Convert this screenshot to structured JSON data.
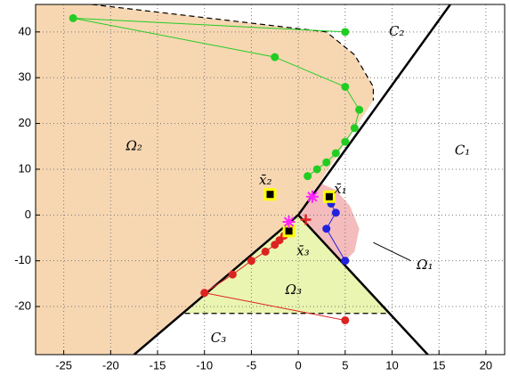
{
  "chart_data": {
    "type": "line",
    "xlim": [
      -28,
      22
    ],
    "ylim": [
      -30.5,
      46
    ],
    "xticks": [
      -25,
      -20,
      -15,
      -10,
      -5,
      0,
      5,
      10,
      15,
      20
    ],
    "yticks": [
      -20,
      -10,
      0,
      10,
      20,
      30,
      40
    ],
    "grid": true,
    "regions": [
      {
        "color": "#f7d7b2",
        "points": [
          [
            -28,
            -30.5
          ],
          [
            -17.5,
            -30.5
          ],
          [
            0,
            0
          ],
          [
            8,
            25
          ],
          [
            8,
            28
          ],
          [
            6,
            35
          ],
          [
            3,
            40
          ],
          [
            -22,
            46
          ],
          [
            -28,
            46
          ]
        ]
      },
      {
        "color": "#f4bcbc",
        "points": [
          [
            0,
            0
          ],
          [
            2.5,
            6.8
          ],
          [
            4,
            5.5
          ],
          [
            5.5,
            2
          ],
          [
            6.5,
            -3
          ],
          [
            6,
            -8
          ],
          [
            5,
            -10
          ],
          [
            4.5,
            -10
          ]
        ]
      },
      {
        "color": "#e9f5b0",
        "points": [
          [
            0,
            0
          ],
          [
            -12.1,
            -21.5
          ],
          [
            9.7,
            -21.5
          ]
        ]
      }
    ],
    "lines": [
      {
        "style": "solid",
        "color": "#000000",
        "width": 2.5,
        "points": [
          [
            -17.5,
            -30.5
          ],
          [
            0,
            0
          ],
          [
            16.2,
            46
          ]
        ]
      },
      {
        "style": "solid",
        "color": "#000000",
        "width": 2.5,
        "points": [
          [
            0,
            0
          ],
          [
            13.8,
            -30.5
          ]
        ]
      },
      {
        "style": "dashed",
        "color": "#000000",
        "width": 1.2,
        "points": [
          [
            -12.1,
            -21.5
          ],
          [
            9.7,
            -21.5
          ]
        ]
      },
      {
        "style": "dashed",
        "color": "#000000",
        "width": 1.2,
        "points": [
          [
            -22,
            46
          ],
          [
            3,
            40
          ],
          [
            6,
            35
          ],
          [
            8,
            28
          ],
          [
            8,
            25
          ]
        ]
      },
      {
        "style": "solid",
        "color": "#000000",
        "width": 1,
        "points": [
          [
            8,
            -6
          ],
          [
            12,
            -10
          ]
        ]
      }
    ],
    "series": [
      {
        "color": "#22cc22",
        "x": [
          5,
          -24,
          -2.5,
          5,
          6.5,
          6,
          5,
          4,
          3,
          2,
          1
        ],
        "values": [
          40,
          43,
          34.5,
          28,
          23,
          19,
          16,
          13.5,
          11.5,
          10,
          8.5
        ]
      },
      {
        "color": "#dd2222",
        "x": [
          5,
          -10,
          -7,
          -5,
          -3.5,
          -2.5,
          -2,
          -1.5,
          -1
        ],
        "values": [
          -23,
          -17,
          -13,
          -10,
          -8,
          -6.5,
          -5.5,
          -4.5,
          -3.5
        ]
      },
      {
        "color": "#2222dd",
        "x": [
          5,
          3,
          4,
          3.5,
          3.5
        ],
        "values": [
          -10,
          -3,
          0.5,
          2.5,
          4
        ]
      }
    ],
    "markers": [
      {
        "shape": "square",
        "color": "#ffff00",
        "x": 3.3,
        "y": 4
      },
      {
        "shape": "square",
        "color": "#ffff00",
        "x": -3,
        "y": 4.5
      },
      {
        "shape": "square",
        "color": "#ffff00",
        "x": -1,
        "y": -3.5
      },
      {
        "shape": "star",
        "color": "#ff22ff",
        "x": 1.5,
        "y": 4
      },
      {
        "shape": "star",
        "color": "#ff22ff",
        "x": -1,
        "y": -1.5
      },
      {
        "shape": "cross",
        "color": "#dd2222",
        "x": 0.8,
        "y": -1
      }
    ],
    "annotations": [
      {
        "text": "Ω₁",
        "x": 13.5,
        "y": -11
      },
      {
        "text": "Ω₂",
        "x": -17.5,
        "y": 15
      },
      {
        "text": "Ω₃",
        "x": -0.5,
        "y": -16.5
      },
      {
        "text": "C₁",
        "x": 17.5,
        "y": 14
      },
      {
        "text": "C₂",
        "x": 10.5,
        "y": 40
      },
      {
        "text": "C₃",
        "x": -8.5,
        "y": -27
      },
      {
        "text": "x̄₁",
        "x": 4.5,
        "y": 5.5
      },
      {
        "text": "x̄₂",
        "x": -3.5,
        "y": 7.5
      },
      {
        "text": "x̄₃",
        "x": 0.5,
        "y": -8
      }
    ]
  }
}
